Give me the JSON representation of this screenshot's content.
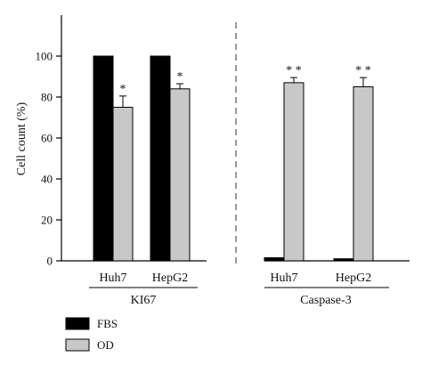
{
  "chart_data": {
    "type": "bar",
    "ylabel": "Cell count (%)",
    "ylim": [
      0,
      120
    ],
    "yticks": [
      0,
      20,
      40,
      60,
      80,
      100
    ],
    "colors": {
      "FBS": "#000000",
      "OD": "#c8c8c8",
      "divider": "#555555"
    },
    "groups": [
      {
        "label": "KI67",
        "categories": [
          {
            "label": "Huh7",
            "values": {
              "FBS": 100,
              "OD": 75
            },
            "errors": {
              "FBS": 0,
              "OD": 5.5
            },
            "significance": {
              "FBS": "",
              "OD": "*"
            }
          },
          {
            "label": "HepG2",
            "values": {
              "FBS": 100,
              "OD": 84
            },
            "errors": {
              "FBS": 0,
              "OD": 2.5
            },
            "significance": {
              "FBS": "",
              "OD": "*"
            }
          }
        ]
      },
      {
        "label": "Caspase-3",
        "categories": [
          {
            "label": "Huh7",
            "values": {
              "FBS": 1.5,
              "OD": 87
            },
            "errors": {
              "FBS": 0,
              "OD": 2.5
            },
            "significance": {
              "FBS": "",
              "OD": "**"
            }
          },
          {
            "label": "HepG2",
            "values": {
              "FBS": 1,
              "OD": 85
            },
            "errors": {
              "FBS": 0,
              "OD": 4.5
            },
            "significance": {
              "FBS": "",
              "OD": "**"
            }
          }
        ]
      }
    ],
    "series": [
      {
        "name": "FBS",
        "color": "#000000"
      },
      {
        "name": "OD",
        "color": "#c8c8c8"
      }
    ],
    "legend": {
      "position": "bottom-left"
    },
    "grid": false
  }
}
